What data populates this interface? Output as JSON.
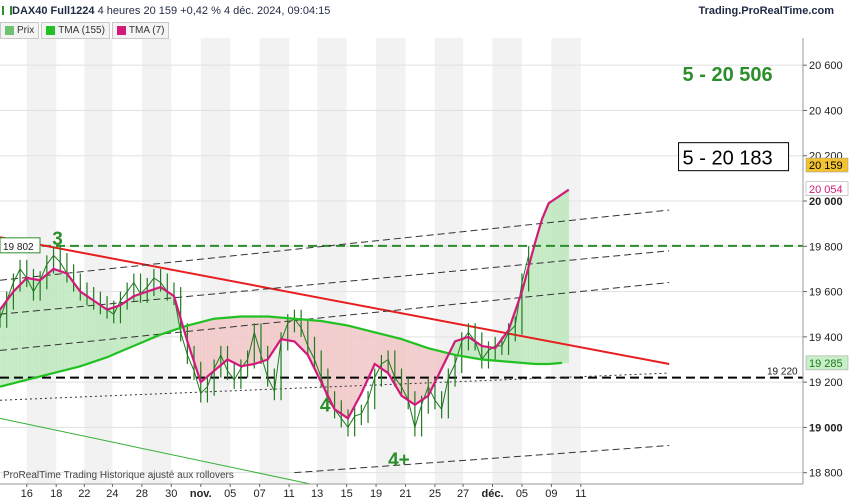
{
  "header": {
    "symbol": "DAX40 Full1224",
    "timeframe": "4 heures",
    "last": "20 159",
    "change": "+0,42 %",
    "datetime": "4 déc. 2024, 09:04:15",
    "brand": "Trading.ProRealTime.com"
  },
  "legend": [
    {
      "label": "Prix",
      "color": "#6fc26f"
    },
    {
      "label": "TMA (155)",
      "color": "#22c022"
    },
    {
      "label": "TMA (7)",
      "color": "#d11a7a"
    }
  ],
  "footer": {
    "note": "ProRealTime Trading  Historique ajusté aux rollovers"
  },
  "chart_data": {
    "type": "line",
    "ylim": [
      18750,
      20720
    ],
    "yticks": [
      18800,
      19000,
      19200,
      19400,
      19600,
      19800,
      20000,
      20200,
      20400,
      20600
    ],
    "ytick_labels": [
      "18 800",
      "19 000",
      "19 200",
      "19 400",
      "19 600",
      "19 800",
      "20 000",
      "20 200",
      "20 400",
      "20 600"
    ],
    "x_range": [
      0,
      60
    ],
    "xticks": [
      {
        "x": 2.0,
        "label": "16"
      },
      {
        "x": 4.2,
        "label": "18"
      },
      {
        "x": 6.3,
        "label": "22"
      },
      {
        "x": 8.4,
        "label": "24"
      },
      {
        "x": 10.6,
        "label": "28"
      },
      {
        "x": 12.8,
        "label": "30"
      },
      {
        "x": 15.0,
        "label": "nov."
      },
      {
        "x": 17.2,
        "label": "05"
      },
      {
        "x": 19.4,
        "label": "07"
      },
      {
        "x": 21.6,
        "label": "11"
      },
      {
        "x": 23.7,
        "label": "13"
      },
      {
        "x": 25.9,
        "label": "15"
      },
      {
        "x": 28.1,
        "label": "19"
      },
      {
        "x": 30.3,
        "label": "21"
      },
      {
        "x": 32.5,
        "label": "25"
      },
      {
        "x": 34.6,
        "label": "27"
      },
      {
        "x": 36.8,
        "label": "déc."
      },
      {
        "x": 39.0,
        "label": "05"
      },
      {
        "x": 41.2,
        "label": "09"
      },
      {
        "x": 43.4,
        "label": "11"
      }
    ],
    "series": [
      {
        "role": "price",
        "color": "#1f7a1f",
        "x": [
          0,
          0.5,
          1,
          1.5,
          2,
          2.5,
          3,
          3.5,
          4,
          4.5,
          5,
          5.5,
          6,
          6.5,
          7,
          7.5,
          8,
          8.5,
          9,
          9.5,
          10,
          10.5,
          11,
          11.5,
          12,
          12.5,
          13,
          13.5,
          14,
          14.5,
          15,
          15.5,
          16,
          16.5,
          17,
          17.5,
          18,
          18.5,
          19,
          19.5,
          20,
          20.5,
          21,
          21.5,
          22,
          22.5,
          23,
          23.5,
          24,
          24.5,
          25,
          25.5,
          26,
          26.5,
          27,
          27.5,
          28,
          28.5,
          29,
          29.5,
          30,
          30.5,
          31,
          31.5,
          32,
          32.5,
          33,
          33.5,
          34,
          34.5,
          35,
          35.5,
          36,
          36.5,
          37,
          37.5,
          38,
          38.5,
          39,
          39.5
        ],
        "values": [
          19480,
          19560,
          19640,
          19700,
          19660,
          19600,
          19650,
          19720,
          19760,
          19730,
          19680,
          19640,
          19600,
          19580,
          19560,
          19540,
          19520,
          19500,
          19560,
          19600,
          19640,
          19590,
          19620,
          19660,
          19640,
          19600,
          19580,
          19420,
          19320,
          19250,
          19150,
          19180,
          19260,
          19320,
          19250,
          19210,
          19260,
          19300,
          19420,
          19320,
          19220,
          19160,
          19380,
          19460,
          19480,
          19440,
          19360,
          19300,
          19220,
          19120,
          19080,
          19040,
          19000,
          19050,
          19060,
          19120,
          19220,
          19280,
          19300,
          19220,
          19180,
          19120,
          19000,
          19100,
          19180,
          19120,
          19080,
          19220,
          19280,
          19380,
          19420,
          19380,
          19300,
          19340,
          19360,
          19360,
          19420,
          19450,
          19640,
          19760
        ]
      },
      {
        "name": "TMA (7)",
        "color": "#d11a7a",
        "x": [
          0,
          1,
          2,
          3,
          4,
          5,
          6,
          7,
          8,
          9,
          10,
          11,
          12,
          13,
          14,
          15,
          16,
          17,
          18,
          19,
          20,
          21,
          22,
          23,
          24,
          25,
          26,
          27,
          28,
          29,
          30,
          31,
          32,
          33,
          34,
          35,
          36,
          37,
          38,
          39,
          40,
          40.5,
          41,
          41.5,
          42,
          42.5
        ],
        "values": [
          19520,
          19600,
          19660,
          19650,
          19700,
          19680,
          19600,
          19560,
          19520,
          19540,
          19580,
          19600,
          19620,
          19580,
          19380,
          19200,
          19250,
          19300,
          19270,
          19280,
          19300,
          19390,
          19380,
          19320,
          19200,
          19080,
          19040,
          19150,
          19280,
          19240,
          19140,
          19100,
          19140,
          19260,
          19380,
          19400,
          19360,
          19350,
          19430,
          19600,
          19820,
          19920,
          19990,
          20010,
          20030,
          20050
        ]
      },
      {
        "name": "TMA (155)",
        "color": "#22c022",
        "x": [
          0,
          2,
          4,
          6,
          8,
          10,
          12,
          14,
          16,
          18,
          20,
          22,
          24,
          26,
          28,
          30,
          32,
          34,
          36,
          38,
          40,
          41,
          42
        ],
        "values": [
          19180,
          19210,
          19240,
          19270,
          19310,
          19360,
          19410,
          19450,
          19480,
          19490,
          19490,
          19480,
          19470,
          19450,
          19420,
          19390,
          19350,
          19320,
          19300,
          19290,
          19280,
          19280,
          19285
        ]
      }
    ],
    "reference_lines": [
      {
        "kind": "horizontal",
        "y": 19802,
        "label": "19 802",
        "color": "#2a8f2a",
        "style": "dashed"
      },
      {
        "kind": "horizontal",
        "y": 19220,
        "label": "19 220",
        "color": "#000000",
        "style": "dashed"
      },
      {
        "kind": "trendline",
        "points": [
          [
            0,
            19840
          ],
          [
            50,
            19280
          ]
        ],
        "color": "#e81d1d",
        "style": "solid"
      },
      {
        "kind": "trendline",
        "points": [
          [
            0,
            19650
          ],
          [
            50,
            19960
          ]
        ],
        "color": "#333333",
        "style": "dashed"
      },
      {
        "kind": "trendline",
        "points": [
          [
            0,
            19500
          ],
          [
            50,
            19780
          ]
        ],
        "color": "#333333",
        "style": "dashed"
      },
      {
        "kind": "trendline",
        "points": [
          [
            0,
            19340
          ],
          [
            50,
            19640
          ]
        ],
        "color": "#333333",
        "style": "dashed"
      },
      {
        "kind": "trendline",
        "points": [
          [
            0,
            19120
          ],
          [
            50,
            19240
          ]
        ],
        "color": "#333333",
        "style": "dotted"
      },
      {
        "kind": "trendline",
        "points": [
          [
            22,
            18800
          ],
          [
            50,
            18920
          ]
        ],
        "color": "#333333",
        "style": "dashed"
      },
      {
        "kind": "trendline",
        "points": [
          [
            0,
            19040
          ],
          [
            24,
            18740
          ]
        ],
        "color": "#35b035",
        "style": "solid"
      }
    ],
    "annotations": [
      {
        "text": "3",
        "x": 3.9,
        "y": 19805,
        "color": "#2a8f2a"
      },
      {
        "text": "4",
        "x": 23.9,
        "y": 19070,
        "color": "#2a8f2a"
      },
      {
        "text": "4+",
        "x": 29.0,
        "y": 18830,
        "color": "#2a8f2a"
      },
      {
        "text": "5 - 20 506",
        "x": 51.0,
        "y": 20530,
        "color": "#2a8f2a"
      }
    ],
    "target_box": {
      "text": "5 -  20 183",
      "x": 51.0,
      "y": 20240
    },
    "price_labels": [
      {
        "text": "20 159",
        "y": 20159,
        "bg": "#f1c232",
        "fg": "#000000"
      },
      {
        "text": "20 054",
        "y": 20054,
        "bg": "#ffffff",
        "fg": "#d11a7a"
      },
      {
        "text": "19 285",
        "y": 19285,
        "bg": "#c8efc8",
        "fg": "#1f7a1f"
      }
    ],
    "grid": true
  }
}
